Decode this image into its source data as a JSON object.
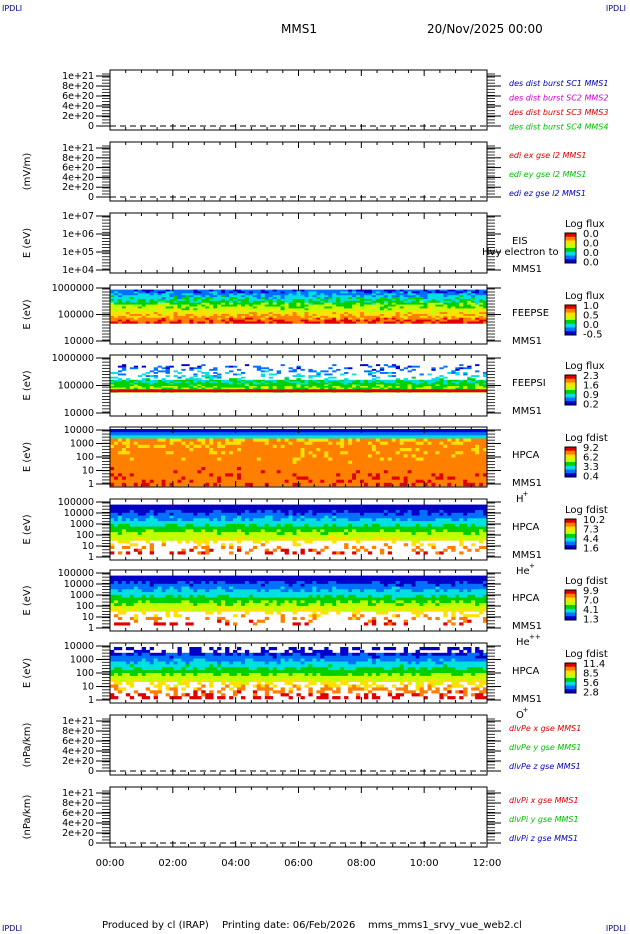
{
  "header": {
    "corner_tl": "IPDLI",
    "corner_tr": "IPDLI",
    "corner_bl": "IPDLI",
    "corner_br": "IPDLI",
    "mission": "MMS1",
    "date": "20/Nov/2025 00:00"
  },
  "footer": {
    "produced": "Produced by cl (IRAP)",
    "printing": "Printing date: 06/Feb/2026",
    "file": "mms_mms1_srvy_vue_web2.cl"
  },
  "colors": {
    "red": "#e00000",
    "green": "#00c000",
    "blue": "#0000c0",
    "magenta": "#d000d0",
    "spectrogram_scale": [
      "#0000c8",
      "#0070ff",
      "#00e0e0",
      "#00d000",
      "#c0ff00",
      "#ffe000",
      "#ff8000",
      "#e00000"
    ]
  },
  "chart_data": [
    {
      "type": "line",
      "id": "p1",
      "ylabel": "",
      "ticks": [
        "1e+21",
        "8e+20",
        "6e+20",
        "4e+20",
        "2e+20",
        "0"
      ],
      "ylim": [
        0,
        1e+21
      ],
      "legend": [
        {
          "text": "des dist burst SC1 MMS1",
          "color": "#0000c0"
        },
        {
          "text": "des dist burst SC2 MMS2",
          "color": "#d000d0"
        },
        {
          "text": "des dist burst SC3 MMS3",
          "color": "#e00000"
        },
        {
          "text": "des dist burst SC4 MMS4",
          "color": "#00c000"
        }
      ],
      "series": []
    },
    {
      "type": "line",
      "id": "p2",
      "ylabel": "(mV/m)",
      "ticks": [
        "1e+21",
        "8e+20",
        "6e+20",
        "4e+20",
        "2e+20",
        "0"
      ],
      "ylim": [
        0,
        1e+21
      ],
      "legend": [
        {
          "text": "edi ex gse l2 MMS1",
          "color": "#e00000"
        },
        {
          "text": "edi ey gse l2 MMS1",
          "color": "#00c000"
        },
        {
          "text": "edi ez gse l2 MMS1",
          "color": "#0000c0"
        }
      ],
      "series": []
    },
    {
      "type": "heatmap",
      "id": "p3",
      "ylabel": "E (eV)",
      "ticks": [
        "1e+07",
        "1e+06",
        "1e+05",
        "1e+04"
      ],
      "ylim": [
        10000,
        10000000
      ],
      "labels": [
        "EIS",
        "MMS1"
      ],
      "overlay_text": "Hvy electron to",
      "colorbar": {
        "title": "Log flux",
        "ticks": [
          "0.0",
          "0.0",
          "0.0",
          "0.0"
        ]
      },
      "band": null
    },
    {
      "type": "heatmap",
      "id": "p4",
      "ylabel": "E (eV)",
      "ticks": [
        "1000000",
        "100000",
        "10000"
      ],
      "ylim": [
        10000,
        1000000
      ],
      "labels": [
        "FEEPSE",
        "MMS1"
      ],
      "colorbar": {
        "title": "Log flux",
        "ticks": [
          "1.0",
          "0.5",
          "0.0",
          "-0.5"
        ]
      },
      "band": {
        "style": "feepse",
        "top": 700000,
        "bottom": 50000
      }
    },
    {
      "type": "heatmap",
      "id": "p5",
      "ylabel": "E (eV)",
      "ticks": [
        "1000000",
        "100000",
        "10000"
      ],
      "ylim": [
        10000,
        1000000
      ],
      "labels": [
        "FEEPSI",
        "MMS1"
      ],
      "colorbar": {
        "title": "Log flux",
        "ticks": [
          "2.3",
          "1.6",
          "0.9",
          "0.2"
        ]
      },
      "band": {
        "style": "feepsi",
        "top": 500000,
        "bottom": 60000
      }
    },
    {
      "type": "heatmap",
      "id": "p6",
      "ylabel": "E (eV)",
      "ticks": [
        "10000",
        "1000",
        "100",
        "10",
        "1"
      ],
      "ylim": [
        1,
        30000
      ],
      "labels": [
        "HPCA",
        "MMS1"
      ],
      "species": "H",
      "species_sup": "+",
      "colorbar": {
        "title": "Log fdist",
        "ticks": [
          "9.2",
          "6.2",
          "3.3",
          "0.4"
        ]
      },
      "band": {
        "style": "h",
        "top": 25000,
        "bottom": 1
      }
    },
    {
      "type": "heatmap",
      "id": "p7",
      "ylabel": "E (eV)",
      "ticks": [
        "100000",
        "10000",
        "1000",
        "100",
        "10",
        "1"
      ],
      "ylim": [
        1,
        100000
      ],
      "labels": [
        "HPCA",
        "MMS1"
      ],
      "species": "He",
      "species_sup": "+",
      "colorbar": {
        "title": "Log fdist",
        "ticks": [
          "10.2",
          "7.3",
          "4.4",
          "1.6"
        ]
      },
      "band": {
        "style": "he",
        "top": 35000,
        "bottom": 3
      }
    },
    {
      "type": "heatmap",
      "id": "p8",
      "ylabel": "E (eV)",
      "ticks": [
        "100000",
        "10000",
        "1000",
        "100",
        "10",
        "1"
      ],
      "ylim": [
        1,
        100000
      ],
      "labels": [
        "HPCA",
        "MMS1"
      ],
      "species": "He",
      "species_sup": "++",
      "colorbar": {
        "title": "Log fdist",
        "ticks": [
          "9.9",
          "7.0",
          "4.1",
          "1.3"
        ]
      },
      "band": {
        "style": "hepp",
        "top": 35000,
        "bottom": 3
      }
    },
    {
      "type": "heatmap",
      "id": "p9",
      "ylabel": "E (eV)",
      "ticks": [
        "10000",
        "1000",
        "100",
        "10",
        "1"
      ],
      "ylim": [
        1,
        30000
      ],
      "labels": [
        "HPCA",
        "MMS1"
      ],
      "species": "O",
      "species_sup": "+",
      "colorbar": {
        "title": "Log fdist",
        "ticks": [
          "11.4",
          "8.5",
          "5.6",
          "2.8"
        ]
      },
      "band": {
        "style": "o",
        "top": 15000,
        "bottom": 2
      }
    },
    {
      "type": "line",
      "id": "p10",
      "ylabel": "(nPa/km)",
      "ticks": [
        "1e+21",
        "8e+20",
        "6e+20",
        "4e+20",
        "2e+20",
        "0"
      ],
      "ylim": [
        0,
        1e+21
      ],
      "legend": [
        {
          "text": "dlvPe x gse MMS1",
          "color": "#e00000"
        },
        {
          "text": "dlvPe y gse MMS1",
          "color": "#00c000"
        },
        {
          "text": "dlvPe z gse MMS1",
          "color": "#0000c0"
        }
      ],
      "series": []
    },
    {
      "type": "line",
      "id": "p11",
      "ylabel": "(nPa/km)",
      "ticks": [
        "1e+21",
        "8e+20",
        "6e+20",
        "4e+20",
        "2e+20",
        "0"
      ],
      "ylim": [
        0,
        1e+21
      ],
      "legend": [
        {
          "text": "dlvPi x gse MMS1",
          "color": "#e00000"
        },
        {
          "text": "dlvPi y gse MMS1",
          "color": "#00c000"
        },
        {
          "text": "dlvPi z gse MMS1",
          "color": "#0000c0"
        }
      ],
      "series": []
    }
  ],
  "time_axis": {
    "ticks": [
      "00:00",
      "02:00",
      "04:00",
      "06:00",
      "08:00",
      "10:00",
      "12:00"
    ]
  }
}
